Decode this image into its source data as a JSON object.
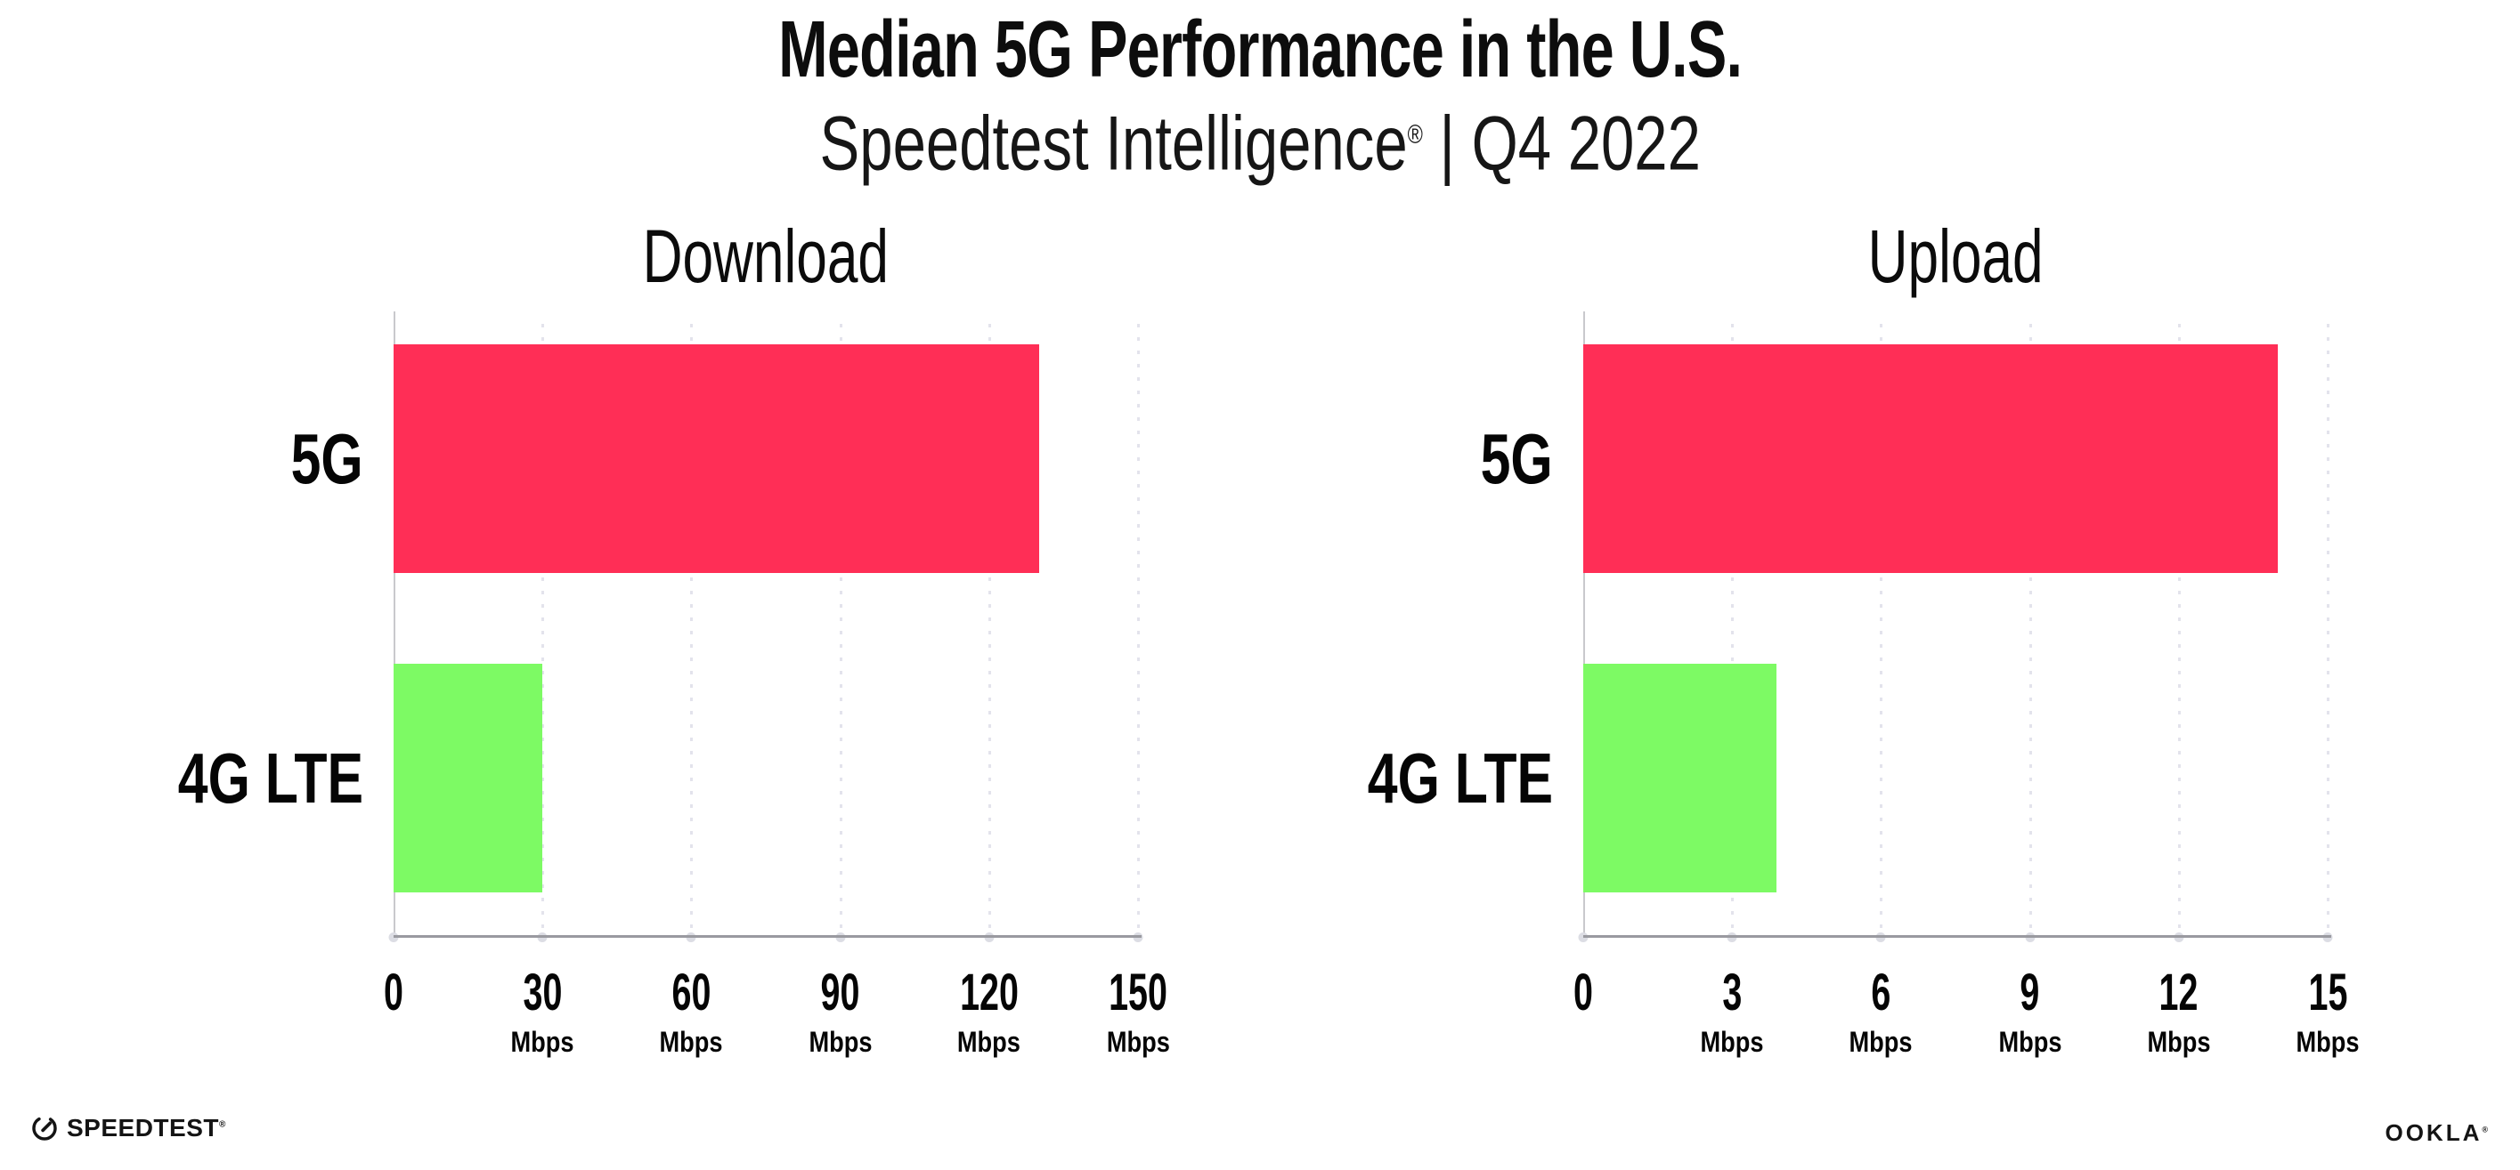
{
  "header": {
    "title": "Median 5G Performance in the U.S.",
    "subtitle_brand": "Speedtest Intelligence",
    "subtitle_reg": "®",
    "subtitle_rest": " | Q4 2022"
  },
  "footer": {
    "speedtest_label": "SPEEDTEST",
    "speedtest_reg": "®",
    "ookla_label": "OOKLA",
    "ookla_reg": "®"
  },
  "colors": {
    "bar_5g": "#ff2e56",
    "bar_4g_lte": "#7dfa64",
    "axis_line": "#9a9aa0",
    "y_axis_line": "#c9c9cd",
    "gridline": "#e3e3ec",
    "text": "#0d0d0d"
  },
  "chart_data": [
    {
      "type": "bar",
      "orientation": "horizontal",
      "title": "Download",
      "categories": [
        "5G",
        "4G LTE"
      ],
      "values": [
        130,
        30
      ],
      "unit": "Mbps",
      "xlim": [
        0,
        150
      ],
      "xticks": [
        0,
        30,
        60,
        90,
        120,
        150
      ],
      "bar_colors": [
        "#ff2e56",
        "#7dfa64"
      ],
      "grid": "dotted-vertical",
      "legend": "none"
    },
    {
      "type": "bar",
      "orientation": "horizontal",
      "title": "Upload",
      "categories": [
        "5G",
        "4G LTE"
      ],
      "values": [
        14,
        3.9
      ],
      "unit": "Mbps",
      "xlim": [
        0,
        15
      ],
      "xticks": [
        0,
        3,
        6,
        9,
        12,
        15
      ],
      "bar_colors": [
        "#ff2e56",
        "#7dfa64"
      ],
      "grid": "dotted-vertical",
      "legend": "none"
    }
  ]
}
